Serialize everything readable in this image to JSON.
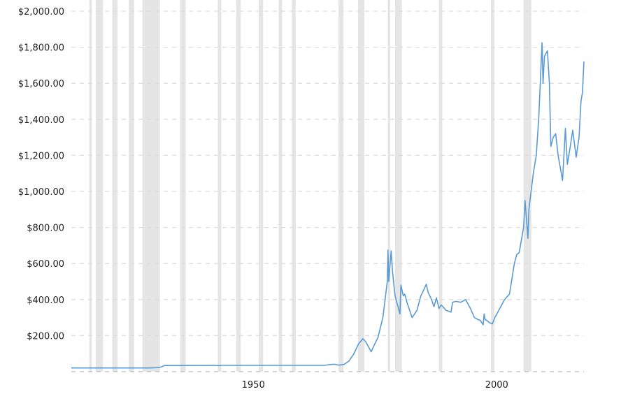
{
  "chart_data": {
    "type": "line",
    "title": "",
    "xlabel": "",
    "ylabel": "",
    "xlim": [
      1915,
      2020.3
    ],
    "ylim": [
      0,
      2000
    ],
    "grid": true,
    "y_ticks": [
      200,
      400,
      600,
      800,
      1000,
      1200,
      1400,
      1600,
      1800,
      2000
    ],
    "y_tick_labels": [
      "$200.00",
      "$400.00",
      "$600.00",
      "$800.00",
      "$1,000.00",
      "$1,200.00",
      "$1,400.00",
      "$1,600.00",
      "$1,800.00",
      "$2,000.00"
    ],
    "x_ticks": [
      1950,
      2000
    ],
    "x_tick_labels": [
      "1950",
      "2000"
    ],
    "colors": {
      "line": "#5b9bd5",
      "shading": "#e5e5e5",
      "grid": "#dddddd"
    },
    "shaded_periods": [
      [
        1918.7,
        1919.2
      ],
      [
        1920.0,
        1921.5
      ],
      [
        1923.4,
        1924.5
      ],
      [
        1926.8,
        1927.9
      ],
      [
        1929.6,
        1933.2
      ],
      [
        1937.4,
        1938.5
      ],
      [
        1945.1,
        1945.8
      ],
      [
        1948.9,
        1949.8
      ],
      [
        1953.5,
        1954.4
      ],
      [
        1957.6,
        1958.3
      ],
      [
        1960.3,
        1961.1
      ],
      [
        1969.9,
        1970.9
      ],
      [
        1973.9,
        1975.2
      ],
      [
        1980.0,
        1980.5
      ],
      [
        1981.5,
        1982.9
      ],
      [
        1990.5,
        1991.2
      ],
      [
        2001.2,
        2001.9
      ],
      [
        2007.9,
        2009.5
      ]
    ],
    "series": [
      {
        "x": [
          1915,
          1925,
          1931,
          1932.5,
          1933.5,
          1934.1,
          1944.5,
          1945.3,
          1946,
          1967,
          1968,
          1969,
          1970,
          1971,
          1972,
          1973,
          1974,
          1974.9,
          1975.5,
          1976.6,
          1977,
          1978,
          1979,
          1979.9,
          1980.05,
          1980.2,
          1980.7,
          1981,
          1981.5,
          1982.5,
          1982.7,
          1983.2,
          1983.5,
          1984,
          1985,
          1985.5,
          1986,
          1986.8,
          1987.5,
          1987.9,
          1988.3,
          1989,
          1989.5,
          1990,
          1990.5,
          1991,
          1992,
          1993,
          1993.3,
          1994,
          1995,
          1996,
          1997,
          1997.8,
          1998.5,
          1999,
          1999.6,
          1999.8,
          2000,
          2001,
          2001.5,
          2002,
          2003,
          2004,
          2005,
          2006,
          2006.5,
          2007,
          2007.9,
          2008.2,
          2008.8,
          2009,
          2009.9,
          2010.5,
          2011,
          2011.7,
          2011.9,
          2012.2,
          2012.8,
          2013.2,
          2013.5,
          2014,
          2014.5,
          2015,
          2015.9,
          2016.5,
          2016.9,
          2017.5,
          2018,
          2018.7,
          2019.3,
          2019.7,
          2020,
          2020.3
        ],
        "y": [
          20.67,
          20.67,
          20.67,
          22,
          26,
          34,
          35,
          33,
          35,
          35,
          39,
          41,
          36,
          40,
          58,
          97,
          154,
          183,
          165,
          110,
          135,
          190,
          300,
          500,
          675,
          500,
          670,
          550,
          420,
          320,
          480,
          420,
          430,
          380,
          300,
          320,
          340,
          420,
          460,
          485,
          440,
          400,
          360,
          410,
          350,
          370,
          340,
          330,
          385,
          390,
          385,
          400,
          350,
          300,
          290,
          285,
          260,
          320,
          290,
          270,
          265,
          300,
          350,
          400,
          430,
          600,
          650,
          660,
          800,
          950,
          740,
          900,
          1100,
          1200,
          1400,
          1825,
          1600,
          1750,
          1780,
          1600,
          1250,
          1300,
          1320,
          1200,
          1060,
          1350,
          1150,
          1250,
          1340,
          1190,
          1300,
          1500,
          1550,
          1720
        ]
      }
    ]
  }
}
